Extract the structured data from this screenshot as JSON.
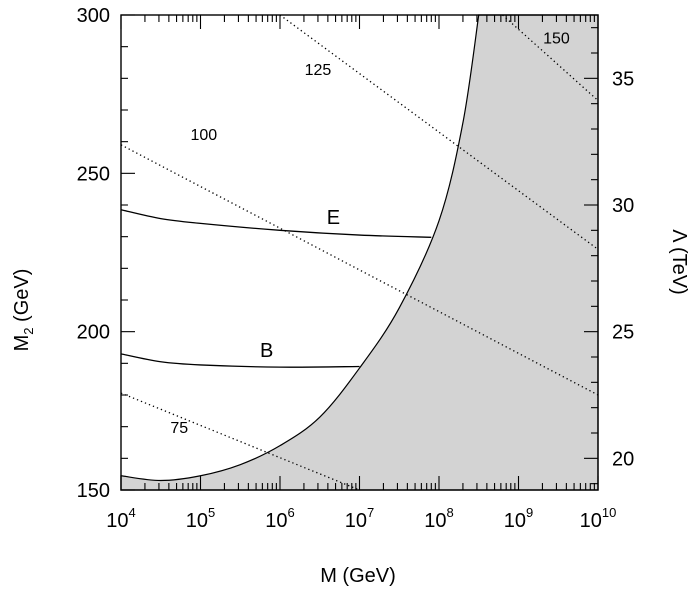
{
  "chart_data": {
    "type": "line",
    "x_axis": {
      "title": "M (GeV)",
      "scale": "log",
      "range": [
        10000,
        10000000000
      ],
      "tick_labels": [
        {
          "base": "10",
          "exp": "4",
          "value": 10000
        },
        {
          "base": "10",
          "exp": "5",
          "value": 100000
        },
        {
          "base": "10",
          "exp": "6",
          "value": 1000000
        },
        {
          "base": "10",
          "exp": "7",
          "value": 10000000
        },
        {
          "base": "10",
          "exp": "8",
          "value": 100000000
        },
        {
          "base": "10",
          "exp": "9",
          "value": 1000000000
        },
        {
          "base": "10",
          "exp": "10",
          "value": 10000000000
        }
      ]
    },
    "y_axis_left": {
      "title_main": "M",
      "title_sub": "2",
      "title_rest": " (GeV)",
      "range": [
        150,
        300
      ],
      "tick_labels": [
        "150",
        "200",
        "250",
        "300"
      ],
      "tick_values": [
        150,
        200,
        250,
        300
      ],
      "minor_step": 10
    },
    "y_axis_right": {
      "title": "Λ (TeV)",
      "range": [
        18.75,
        37.5
      ],
      "tick_labels": [
        "20",
        "25",
        "30",
        "35"
      ],
      "tick_values": [
        20,
        25,
        30,
        35
      ],
      "minor_step": 1
    },
    "excluded_region": {
      "fill": "#d3d3d3",
      "boundary": [
        {
          "x": 10000,
          "y": 154.5
        },
        {
          "x": 31600,
          "y": 153.0
        },
        {
          "x": 100000,
          "y": 154.5
        },
        {
          "x": 316000,
          "y": 158.0
        },
        {
          "x": 1000000,
          "y": 164.0
        },
        {
          "x": 3160000,
          "y": 173.0
        },
        {
          "x": 10000000,
          "y": 188.5
        },
        {
          "x": 31600000,
          "y": 207.5
        },
        {
          "x": 100000000,
          "y": 235.0
        },
        {
          "x": 200000000,
          "y": 266.0
        },
        {
          "x": 316000000,
          "y": 300.0
        }
      ]
    },
    "series": [
      {
        "name": "E",
        "style": "solid",
        "label_at": {
          "x": 4700000,
          "y": 234
        },
        "points": [
          {
            "x": 10000,
            "y": 238.5
          },
          {
            "x": 31600,
            "y": 235.7
          },
          {
            "x": 100000,
            "y": 234.2
          },
          {
            "x": 1000000,
            "y": 232.0
          },
          {
            "x": 10000000,
            "y": 230.5
          },
          {
            "x": 80000000,
            "y": 229.8
          }
        ]
      },
      {
        "name": "B",
        "style": "solid",
        "label_at": {
          "x": 680000,
          "y": 192
        },
        "points": [
          {
            "x": 10000,
            "y": 193.0
          },
          {
            "x": 31600,
            "y": 190.5
          },
          {
            "x": 100000,
            "y": 189.5
          },
          {
            "x": 1000000,
            "y": 188.8
          },
          {
            "x": 10000000,
            "y": 189.0
          }
        ]
      },
      {
        "name": "75",
        "style": "dotted",
        "label_at": {
          "x": 54000,
          "y": 168
        },
        "points": [
          {
            "x": 10000,
            "y": 180.6
          },
          {
            "x": 10000000,
            "y": 150.0
          }
        ]
      },
      {
        "name": "100",
        "style": "dotted",
        "label_at": {
          "x": 110000,
          "y": 260.5
        },
        "points": [
          {
            "x": 10000,
            "y": 259.0
          },
          {
            "x": 10000000000,
            "y": 180.0
          }
        ]
      },
      {
        "name": "125",
        "style": "dotted",
        "label_at": {
          "x": 3000000,
          "y": 281
        },
        "points": [
          {
            "x": 1000000,
            "y": 300.0
          },
          {
            "x": 10000000000,
            "y": 226.0
          }
        ]
      },
      {
        "name": "150",
        "style": "dotted",
        "label_at": {
          "x": 3000000000,
          "y": 291
        },
        "points": [
          {
            "x": 630000000,
            "y": 300.0
          },
          {
            "x": 10000000000,
            "y": 273.0
          }
        ]
      }
    ],
    "grid": false,
    "legend": "none"
  }
}
